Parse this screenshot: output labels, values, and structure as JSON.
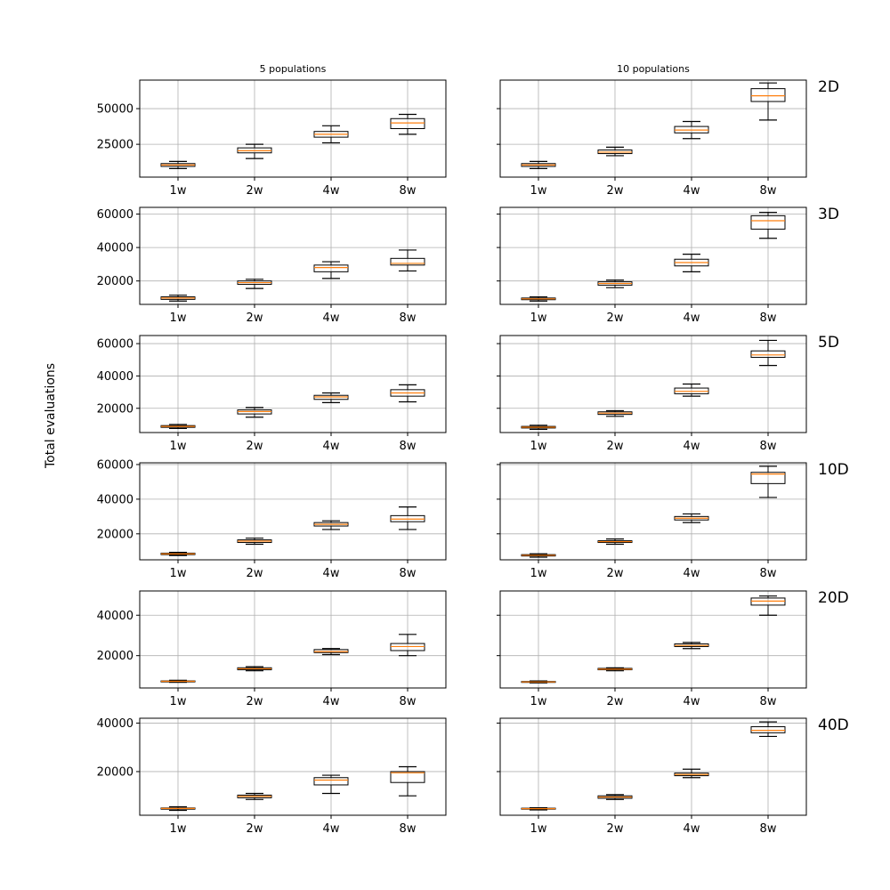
{
  "figure": {
    "ylabel": "Total evaluations",
    "column_titles": [
      "5 populations",
      "10 populations"
    ],
    "row_labels": [
      "2D",
      "3D",
      "5D",
      "10D",
      "20D",
      "40D"
    ],
    "categories": [
      "1w",
      "2w",
      "4w",
      "8w"
    ],
    "colors": {
      "median": "#ff7f0e",
      "box": "#000000",
      "grid": "#b0b0b0"
    }
  },
  "chart_data": [
    {
      "type": "boxplot",
      "row_label": "2D",
      "column_title": "5 populations",
      "categories": [
        "1w",
        "2w",
        "4w",
        "8w"
      ],
      "ylim": [
        2000,
        70000
      ],
      "yticks": [
        25000,
        50000
      ],
      "grid": true,
      "boxes": [
        {
          "whislo": 8000,
          "q1": 9500,
          "med": 10500,
          "q3": 11500,
          "whishi": 13000
        },
        {
          "whislo": 15000,
          "q1": 19000,
          "med": 20500,
          "q3": 22500,
          "whishi": 25000
        },
        {
          "whislo": 26000,
          "q1": 30000,
          "med": 32000,
          "q3": 34000,
          "whishi": 38000
        },
        {
          "whislo": 32000,
          "q1": 36000,
          "med": 40000,
          "q3": 43000,
          "whishi": 46000
        }
      ]
    },
    {
      "type": "boxplot",
      "row_label": "2D",
      "column_title": "10 populations",
      "categories": [
        "1w",
        "2w",
        "4w",
        "8w"
      ],
      "ylim": [
        2000,
        70000
      ],
      "yticks": [
        25000,
        50000
      ],
      "grid": true,
      "boxes": [
        {
          "whislo": 8000,
          "q1": 9500,
          "med": 10500,
          "q3": 11500,
          "whishi": 13000
        },
        {
          "whislo": 17000,
          "q1": 18500,
          "med": 19500,
          "q3": 21000,
          "whishi": 23000
        },
        {
          "whislo": 29000,
          "q1": 33000,
          "med": 35000,
          "q3": 37500,
          "whishi": 41000
        },
        {
          "whislo": 42000,
          "q1": 55000,
          "med": 59000,
          "q3": 64000,
          "whishi": 68000
        }
      ]
    },
    {
      "type": "boxplot",
      "row_label": "3D",
      "column_title": "5 populations",
      "categories": [
        "1w",
        "2w",
        "4w",
        "8w"
      ],
      "ylim": [
        6000,
        64000
      ],
      "yticks": [
        20000,
        40000,
        60000
      ],
      "grid": true,
      "boxes": [
        {
          "whislo": 8000,
          "q1": 9000,
          "med": 9800,
          "q3": 10500,
          "whishi": 11500
        },
        {
          "whislo": 15500,
          "q1": 18000,
          "med": 19000,
          "q3": 20000,
          "whishi": 21000
        },
        {
          "whislo": 21500,
          "q1": 25500,
          "med": 28000,
          "q3": 29500,
          "whishi": 31500
        },
        {
          "whislo": 26000,
          "q1": 29500,
          "med": 30500,
          "q3": 33500,
          "whishi": 38500
        }
      ]
    },
    {
      "type": "boxplot",
      "row_label": "3D",
      "column_title": "10 populations",
      "categories": [
        "1w",
        "2w",
        "4w",
        "8w"
      ],
      "ylim": [
        6000,
        64000
      ],
      "yticks": [
        20000,
        40000,
        60000
      ],
      "grid": true,
      "boxes": [
        {
          "whislo": 8000,
          "q1": 8800,
          "med": 9300,
          "q3": 9800,
          "whishi": 10500
        },
        {
          "whislo": 16000,
          "q1": 17500,
          "med": 18500,
          "q3": 19500,
          "whishi": 20500
        },
        {
          "whislo": 25500,
          "q1": 29000,
          "med": 31000,
          "q3": 33000,
          "whishi": 36000
        },
        {
          "whislo": 45500,
          "q1": 51000,
          "med": 56000,
          "q3": 59000,
          "whishi": 61000
        }
      ]
    },
    {
      "type": "boxplot",
      "row_label": "5D",
      "column_title": "5 populations",
      "categories": [
        "1w",
        "2w",
        "4w",
        "8w"
      ],
      "ylim": [
        5000,
        65000
      ],
      "yticks": [
        20000,
        40000,
        60000
      ],
      "grid": true,
      "boxes": [
        {
          "whislo": 7500,
          "q1": 8200,
          "med": 8800,
          "q3": 9300,
          "whishi": 10000
        },
        {
          "whislo": 14500,
          "q1": 16500,
          "med": 18000,
          "q3": 19000,
          "whishi": 20500
        },
        {
          "whislo": 23500,
          "q1": 25500,
          "med": 27000,
          "q3": 28000,
          "whishi": 29500
        },
        {
          "whislo": 24000,
          "q1": 27500,
          "med": 29500,
          "q3": 31500,
          "whishi": 34500
        }
      ]
    },
    {
      "type": "boxplot",
      "row_label": "5D",
      "column_title": "10 populations",
      "categories": [
        "1w",
        "2w",
        "4w",
        "8w"
      ],
      "ylim": [
        5000,
        65000
      ],
      "yticks": [
        20000,
        40000,
        60000
      ],
      "grid": true,
      "boxes": [
        {
          "whislo": 7000,
          "q1": 7800,
          "med": 8300,
          "q3": 8800,
          "whishi": 9500
        },
        {
          "whislo": 15000,
          "q1": 16200,
          "med": 17000,
          "q3": 17800,
          "whishi": 18500
        },
        {
          "whislo": 27500,
          "q1": 29000,
          "med": 30500,
          "q3": 32500,
          "whishi": 35000
        },
        {
          "whislo": 46500,
          "q1": 51500,
          "med": 53000,
          "q3": 55500,
          "whishi": 62000
        }
      ]
    },
    {
      "type": "boxplot",
      "row_label": "10D",
      "column_title": "5 populations",
      "categories": [
        "1w",
        "2w",
        "4w",
        "8w"
      ],
      "ylim": [
        5000,
        61000
      ],
      "yticks": [
        20000,
        40000,
        60000
      ],
      "grid": true,
      "boxes": [
        {
          "whislo": 7500,
          "q1": 8000,
          "med": 8400,
          "q3": 8800,
          "whishi": 9300
        },
        {
          "whislo": 14000,
          "q1": 15000,
          "med": 15800,
          "q3": 16500,
          "whishi": 17500
        },
        {
          "whislo": 22500,
          "q1": 24500,
          "med": 25500,
          "q3": 26500,
          "whishi": 27500
        },
        {
          "whislo": 22500,
          "q1": 27000,
          "med": 28500,
          "q3": 30500,
          "whishi": 35500
        }
      ]
    },
    {
      "type": "boxplot",
      "row_label": "10D",
      "column_title": "10 populations",
      "categories": [
        "1w",
        "2w",
        "4w",
        "8w"
      ],
      "ylim": [
        5000,
        61000
      ],
      "yticks": [
        20000,
        40000,
        60000
      ],
      "grid": true,
      "boxes": [
        {
          "whislo": 6500,
          "q1": 7200,
          "med": 7600,
          "q3": 8000,
          "whishi": 8500
        },
        {
          "whislo": 14000,
          "q1": 15000,
          "med": 15500,
          "q3": 16000,
          "whishi": 17000
        },
        {
          "whislo": 26500,
          "q1": 28000,
          "med": 29000,
          "q3": 30000,
          "whishi": 31500
        },
        {
          "whislo": 41000,
          "q1": 49000,
          "med": 54500,
          "q3": 55500,
          "whishi": 59000
        }
      ]
    },
    {
      "type": "boxplot",
      "row_label": "20D",
      "column_title": "5 populations",
      "categories": [
        "1w",
        "2w",
        "4w",
        "8w"
      ],
      "ylim": [
        4000,
        52000
      ],
      "yticks": [
        20000,
        40000
      ],
      "grid": true,
      "boxes": [
        {
          "whislo": 6800,
          "q1": 7000,
          "med": 7300,
          "q3": 7500,
          "whishi": 7800
        },
        {
          "whislo": 12500,
          "q1": 13000,
          "med": 13500,
          "q3": 14000,
          "whishi": 14500
        },
        {
          "whislo": 20500,
          "q1": 21500,
          "med": 22000,
          "q3": 23000,
          "whishi": 23500
        },
        {
          "whislo": 20000,
          "q1": 22500,
          "med": 24500,
          "q3": 26000,
          "whishi": 30500
        }
      ]
    },
    {
      "type": "boxplot",
      "row_label": "20D",
      "column_title": "10 populations",
      "categories": [
        "1w",
        "2w",
        "4w",
        "8w"
      ],
      "ylim": [
        4000,
        52000
      ],
      "yticks": [
        20000,
        40000
      ],
      "grid": true,
      "boxes": [
        {
          "whislo": 6500,
          "q1": 6800,
          "med": 7000,
          "q3": 7200,
          "whishi": 7500
        },
        {
          "whislo": 12500,
          "q1": 13000,
          "med": 13300,
          "q3": 13700,
          "whishi": 14000
        },
        {
          "whislo": 23500,
          "q1": 24500,
          "med": 25000,
          "q3": 25800,
          "whishi": 26500
        },
        {
          "whislo": 40000,
          "q1": 45000,
          "med": 47000,
          "q3": 48500,
          "whishi": 49500
        }
      ]
    },
    {
      "type": "boxplot",
      "row_label": "40D",
      "column_title": "5 populations",
      "categories": [
        "1w",
        "2w",
        "4w",
        "8w"
      ],
      "ylim": [
        2000,
        42000
      ],
      "yticks": [
        20000,
        40000
      ],
      "grid": true,
      "boxes": [
        {
          "whislo": 4000,
          "q1": 4500,
          "med": 4800,
          "q3": 5000,
          "whishi": 5500
        },
        {
          "whislo": 8500,
          "q1": 9200,
          "med": 9800,
          "q3": 10300,
          "whishi": 11000
        },
        {
          "whislo": 11000,
          "q1": 14500,
          "med": 16500,
          "q3": 17500,
          "whishi": 18500
        },
        {
          "whislo": 10000,
          "q1": 15500,
          "med": 19500,
          "q3": 20000,
          "whishi": 22000
        }
      ]
    },
    {
      "type": "boxplot",
      "row_label": "40D",
      "column_title": "10 populations",
      "categories": [
        "1w",
        "2w",
        "4w",
        "8w"
      ],
      "ylim": [
        2000,
        42000
      ],
      "yticks": [
        20000,
        40000
      ],
      "grid": true,
      "boxes": [
        {
          "whislo": 4200,
          "q1": 4500,
          "med": 4700,
          "q3": 4900,
          "whishi": 5100
        },
        {
          "whislo": 8500,
          "q1": 9000,
          "med": 9500,
          "q3": 10000,
          "whishi": 10500
        },
        {
          "whislo": 17500,
          "q1": 18300,
          "med": 18800,
          "q3": 19400,
          "whishi": 21000
        },
        {
          "whislo": 34500,
          "q1": 36000,
          "med": 37000,
          "q3": 38500,
          "whishi": 40500
        }
      ]
    }
  ]
}
